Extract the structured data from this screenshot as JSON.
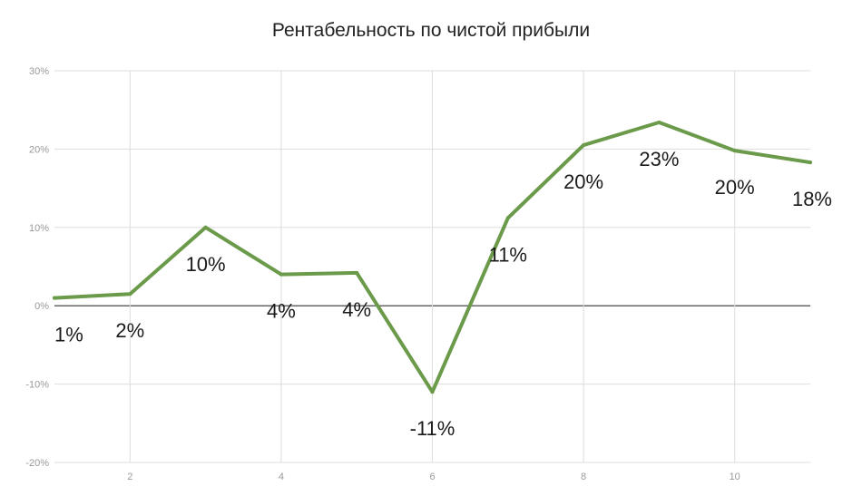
{
  "chart_data": {
    "type": "line",
    "title": "Рентабельность по чистой прибыли",
    "xlabel": "",
    "ylabel": "",
    "x": [
      1,
      2,
      3,
      4,
      5,
      6,
      7,
      8,
      9,
      10,
      11
    ],
    "series": [
      {
        "values": [
          1,
          1.5,
          10,
          4,
          4.2,
          -11,
          11.2,
          20.5,
          23.4,
          19.8,
          18.3
        ],
        "labels": [
          "1%",
          "2%",
          "10%",
          "4%",
          "4%",
          "-11%",
          "11%",
          "20%",
          "23%",
          "20%",
          "18%"
        ],
        "color": "#6a9a4a"
      }
    ],
    "ylim": [
      -20,
      30
    ],
    "xlim": [
      1,
      11
    ],
    "y_ticks": [
      30,
      20,
      10,
      0,
      -10,
      -20
    ],
    "y_tick_labels": [
      "30%",
      "20%",
      "10%",
      "0%",
      "-10%",
      "-20%"
    ],
    "x_ticks": [
      2,
      4,
      6,
      8,
      10
    ],
    "x_tick_labels": [
      "2",
      "4",
      "6",
      "8",
      "10"
    ],
    "grid": true,
    "legend": "none",
    "colors": {
      "grid": "#dddddd",
      "zero_line": "#333333",
      "tick_text": "#999999",
      "label_text": "#1a1a1a"
    }
  }
}
